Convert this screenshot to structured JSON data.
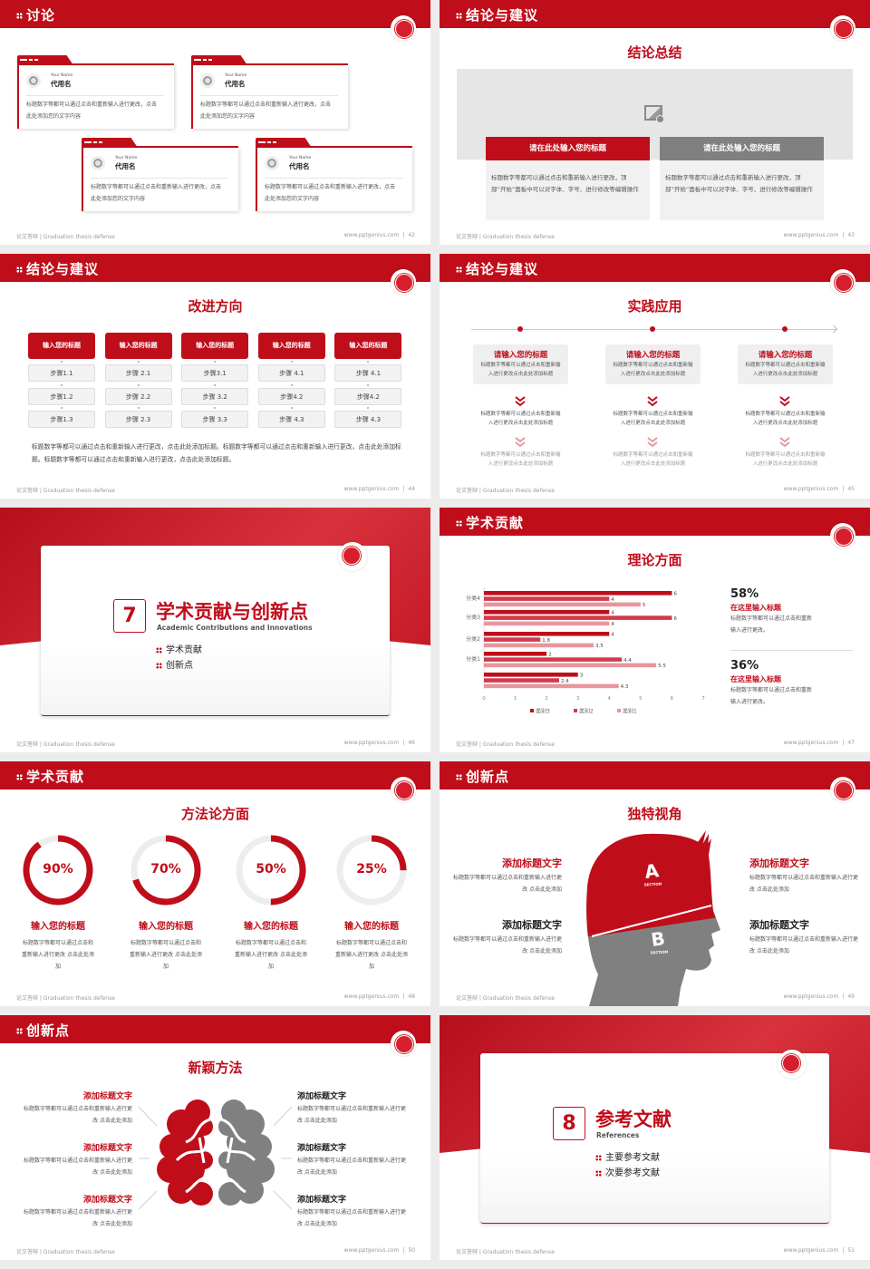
{
  "footer": {
    "left": "论文答辩 | Graduation thesis defense",
    "site": "www.pptgenius.com",
    "sep": "|"
  },
  "colors": {
    "primary": "#c00d1a",
    "gray": "#808080",
    "series3": "#c00d1a",
    "series2": "#d23a4a",
    "series1": "#e8959e"
  },
  "slides": [
    {
      "header": "讨论",
      "page": "42",
      "logo_icon": "school-seal-icon",
      "cards": [
        {
          "en": "Your Name",
          "name": "代用名",
          "text": "标题数字等都可以通过点击和重新输入进行更改，点击此处添加您的文字内容"
        },
        {
          "en": "Your Name",
          "name": "代用名",
          "text": "标题数字等都可以通过点击和重新输入进行更改，点击此处添加您的文字内容"
        },
        {
          "en": "Your Name",
          "name": "代用名",
          "text": "标题数字等都可以通过点击和重新输入进行更改，点击此处添加您的文字内容"
        },
        {
          "en": "Your Name",
          "name": "代用名",
          "text": "标题数字等都可以通过点击和重新输入进行更改，点击此处添加您的文字内容"
        }
      ]
    },
    {
      "header": "结论与建议",
      "page": "43",
      "subtitle": "结论总结",
      "columns": [
        {
          "title": "请在此处输入您的标题",
          "text": "标题数字等都可以通过点击和重新输入进行更改，顶部“开始”面板中可以对字体、字号、进行修改等编辑操作"
        },
        {
          "title": "请在此处输入您的标题",
          "text": "标题数字等都可以通过点击和重新输入进行更改，顶部“开始”面板中可以对字体、字号、进行修改等编辑操作"
        }
      ]
    },
    {
      "header": "结论与建议",
      "page": "44",
      "subtitle": "改进方向",
      "columns": [
        {
          "title": "输入您的标题",
          "steps": [
            "步骤1.1",
            "步骤1.2",
            "步骤1.3"
          ]
        },
        {
          "title": "输入您的标题",
          "steps": [
            "步骤 2.1",
            "步骤 2.2",
            "步骤 2.3"
          ]
        },
        {
          "title": "输入您的标题",
          "steps": [
            "步骤3.1",
            "步骤 3.2",
            "步骤 3.3"
          ]
        },
        {
          "title": "输入您的标题",
          "steps": [
            "步骤 4.1",
            "步骤4.2",
            "步骤 4.3"
          ]
        },
        {
          "title": "输入您的标题",
          "steps": [
            "步骤 4.1",
            "步骤4.2",
            "步骤 4.3"
          ]
        }
      ],
      "paragraph": "标题数字等都可以通过点击和重新输入进行更改，点击此处添加标题。标题数字等都可以通过点击和重新输入进行更改，点击此处添加标题。标题数字等都可以通过点击和重新输入进行更改，点击此处添加标题。"
    },
    {
      "header": "结论与建议",
      "page": "45",
      "subtitle": "实践应用",
      "columns": [
        {
          "title": "请输入您的标题",
          "text": "标题数字等都可以通过点击和重新输入进行更改点击此处添加标题",
          "step2": "标题数字等都可以通过点击和重新输入进行更改点击此处添加标题",
          "step3": "标题数字等都可以通过点击和重新输入进行更改点击此处添加标题"
        },
        {
          "title": "请输入您的标题",
          "text": "标题数字等都可以通过点击和重新输入进行更改点击此处添加标题",
          "step2": "标题数字等都可以通过点击和重新输入进行更改点击此处添加标题",
          "step3": "标题数字等都可以通过点击和重新输入进行更改点击此处添加标题"
        },
        {
          "title": "请输入您的标题",
          "text": "标题数字等都可以通过点击和重新输入进行更改点击此处添加标题",
          "step2": "标题数字等都可以通过点击和重新输入进行更改点击此处添加标题",
          "step3": "标题数字等都可以通过点击和重新输入进行更改点击此处添加标题"
        }
      ]
    },
    {
      "section": true,
      "page": "46",
      "number": "7",
      "title": "学术贡献与创新点",
      "english": "Academic Contributions and Innovations",
      "items": [
        "学术贡献",
        "创新点"
      ]
    },
    {
      "header": "学术贡献",
      "page": "47",
      "subtitle": "理论方面",
      "stats": [
        {
          "value": "58%",
          "title": "在这里输入标题",
          "text": "标题数字等都可以通过点击和重新输入进行更改。"
        },
        {
          "value": "36%",
          "title": "在这里输入标题",
          "text": "标题数字等都可以通过点击和重新输入进行更改。"
        }
      ]
    },
    {
      "header": "学术贡献",
      "page": "48",
      "subtitle": "方法论方面",
      "rings": [
        {
          "label": "90%",
          "value": 90,
          "title": "输入您的标题",
          "text": "标题数字等都可以通过点击和重新输入进行更改 点击此处添加"
        },
        {
          "label": "70%",
          "value": 70,
          "title": "输入您的标题",
          "text": "标题数字等都可以通过点击和重新输入进行更改 点击此处添加"
        },
        {
          "label": "50%",
          "value": 50,
          "title": "输入您的标题",
          "text": "标题数字等都可以通过点击和重新输入进行更改 点击此处添加"
        },
        {
          "label": "25%",
          "value": 25,
          "title": "输入您的标题",
          "text": "标题数字等都可以通过点击和重新输入进行更改 点击此处添加"
        }
      ]
    },
    {
      "header": "创新点",
      "page": "49",
      "subtitle": "独特视角",
      "head": {
        "a": "A",
        "b": "B",
        "section": "SECTION"
      },
      "blocks": [
        {
          "title": "添加标题文字",
          "text": "标题数字等都可以通过点击和重新输入进行更改 点击此处添加"
        },
        {
          "title": "添加标题文字",
          "text": "标题数字等都可以通过点击和重新输入进行更改 点击此处添加"
        },
        {
          "title": "添加标题文字",
          "text": "标题数字等都可以通过点击和重新输入进行更改 点击此处添加"
        },
        {
          "title": "添加标题文字",
          "text": "标题数字等都可以通过点击和重新输入进行更改 点击此处添加"
        }
      ]
    },
    {
      "header": "创新点",
      "page": "50",
      "subtitle": "新颖方法",
      "blocks": [
        {
          "title": "添加标题文字",
          "text": "标题数字等都可以通过点击和重新输入进行更改 点击此处添加"
        },
        {
          "title": "添加标题文字",
          "text": "标题数字等都可以通过点击和重新输入进行更改 点击此处添加"
        },
        {
          "title": "添加标题文字",
          "text": "标题数字等都可以通过点击和重新输入进行更改 点击此处添加"
        },
        {
          "title": "添加标题文字",
          "text": "标题数字等都可以通过点击和重新输入进行更改 点击此处添加"
        },
        {
          "title": "添加标题文字",
          "text": "标题数字等都可以通过点击和重新输入进行更改 点击此处添加"
        },
        {
          "title": "添加标题文字",
          "text": "标题数字等都可以通过点击和重新输入进行更改 点击此处添加"
        }
      ]
    },
    {
      "section": true,
      "page": "51",
      "number": "8",
      "title": "参考文献",
      "english": "References",
      "items": [
        "主要参考文献",
        "次要参考文献"
      ]
    }
  ],
  "chart_data": {
    "type": "bar",
    "orientation": "horizontal",
    "categories": [
      "分类4",
      "分类3",
      "分类2",
      "分类1",
      ""
    ],
    "series": [
      {
        "name": "类别3",
        "values": [
          6,
          4,
          4,
          2,
          3
        ]
      },
      {
        "name": "类别2",
        "values": [
          4,
          6,
          1.8,
          4.4,
          2.4
        ]
      },
      {
        "name": "类别1",
        "values": [
          5,
          4,
          3.5,
          5.5,
          4.3
        ]
      }
    ],
    "xlim": [
      0,
      7
    ],
    "xticks": [
      "0",
      "1",
      "2",
      "3",
      "4",
      "5",
      "6",
      "7"
    ],
    "grid": false,
    "legend": "bottom"
  }
}
